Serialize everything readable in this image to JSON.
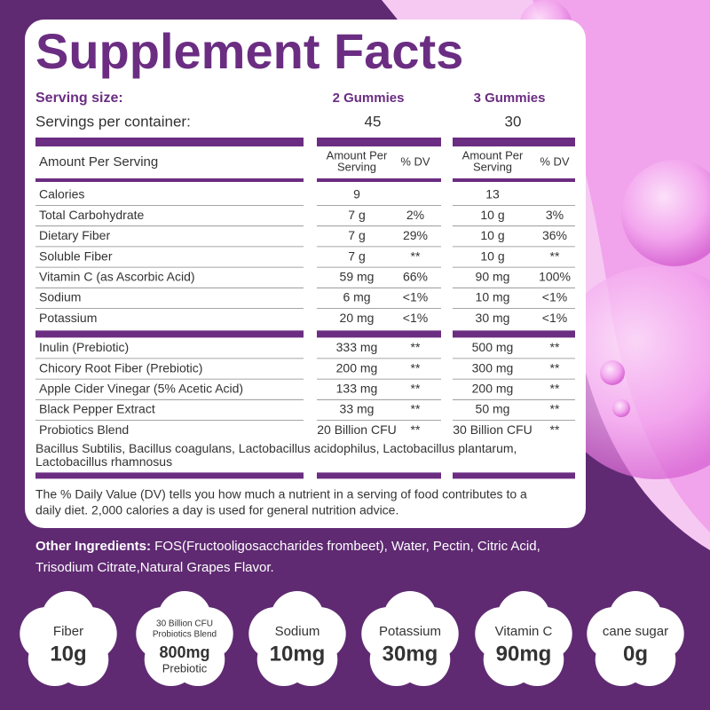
{
  "title": "Supplement Facts",
  "serving_size": {
    "label": "Serving size:",
    "a": "2 Gummies",
    "b": "3 Gummies"
  },
  "servings_per_container": {
    "label": "Servings per container:",
    "a": 45,
    "b": 30
  },
  "column_header": {
    "label": "Amount Per Serving",
    "amount": [
      "Amount Per",
      "Serving"
    ],
    "dv": "% DV"
  },
  "rows": [
    [
      "Calories",
      "9",
      null,
      "13",
      null
    ],
    [
      "Total Carbohydrate",
      "7 g",
      "2%",
      "10 g",
      "3%"
    ],
    [
      "Dietary Fiber",
      "7 g",
      "29%",
      "10 g",
      "36%"
    ],
    [
      "Soluble Fiber",
      "7 g",
      "**",
      "10 g",
      "**"
    ],
    [
      "Vitamin C (as Ascorbic Acid)",
      "59 mg",
      "66%",
      "90 mg",
      "100%"
    ],
    [
      "Sodium",
      "6 mg",
      "<1%",
      "10 mg",
      "<1%"
    ],
    [
      "Potassium",
      "20 mg",
      "<1%",
      "30 mg",
      "<1%"
    ],
    [
      "Inulin (Prebiotic)",
      "333 mg",
      "**",
      "500 mg",
      "**"
    ],
    [
      "Chicory Root Fiber (Prebiotic)",
      "200 mg",
      "**",
      "300 mg",
      "**"
    ],
    [
      "Apple Cider Vinegar (5% Acetic Acid)",
      "133 mg",
      "**",
      "200 mg",
      "**"
    ],
    [
      "Black Pepper Extract",
      "33 mg",
      "**",
      "50 mg",
      "**"
    ],
    [
      "Probiotics Blend",
      "20 Billion CFU",
      "**",
      "30 Billion CFU",
      "**"
    ]
  ],
  "blend_strains": [
    "Bacillus Subtilis, Bacillus coagulans, Lactobacillus acidophilus, Lactobacillus plantarum,",
    "Lactobacillus rhamnosus"
  ],
  "footnote": [
    "The % Daily Value (DV) tells you how much a nutrient in a serving of food contributes to a",
    "daily diet. 2,000 calories a day is used for general nutrition advice."
  ],
  "other_ingredients": {
    "label": "Other Ingredients:",
    "lines": [
      " FOS(Fructooligosaccharides frombeet), Water, Pectin, Citric Acid,",
      "Trisodium Citrate,Natural Grapes Flavor."
    ]
  },
  "badges": [
    {
      "top": [
        "Fiber"
      ],
      "value": "10g"
    },
    {
      "top": [
        "30 Billion CFU",
        "Probiotics Blend"
      ],
      "value": "800mg",
      "bottom": "Prebiotic"
    },
    {
      "top": [
        "Sodium"
      ],
      "value": "10mg"
    },
    {
      "top": [
        "Potassium"
      ],
      "value": "30mg"
    },
    {
      "top": [
        "Vitamin C"
      ],
      "value": "90mg"
    },
    {
      "top": [
        "cane sugar"
      ],
      "value": "0g"
    }
  ]
}
